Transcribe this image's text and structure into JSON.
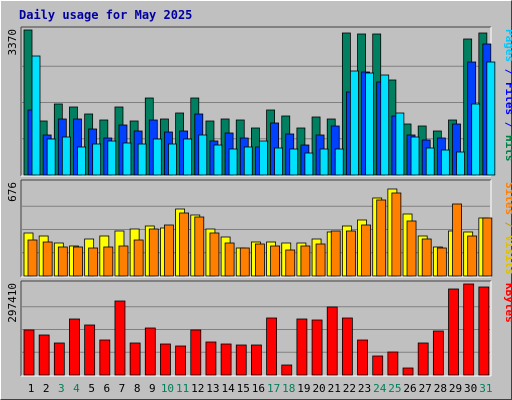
{
  "title": "Daily usage for May 2025",
  "chart_data": [
    {
      "type": "bar",
      "panel": "hits-files-pages",
      "max_label": "3370",
      "ymax": 3370,
      "legend": [
        {
          "text": "Pages",
          "color": "#00c8ff"
        },
        {
          "text": " / ",
          "color": "#0000ff"
        },
        {
          "text": "Files",
          "color": "#0000ff"
        },
        {
          "text": " / ",
          "color": "#0000ff"
        },
        {
          "text": "Hits",
          "color": "#008040"
        }
      ],
      "series": [
        {
          "name": "Hits",
          "color": "#008060",
          "values": [
            3370,
            1250,
            1650,
            1590,
            1420,
            1270,
            1570,
            1260,
            1790,
            1290,
            1450,
            1790,
            1250,
            1290,
            1270,
            1090,
            1500,
            1380,
            1090,
            1350,
            1300,
            3300,
            3270,
            3270,
            2200,
            1190,
            1140,
            1030,
            1270,
            3150,
            3290
          ]
        },
        {
          "name": "Files",
          "color": "#0040ff",
          "values": [
            1520,
            920,
            1300,
            1290,
            1080,
            860,
            1160,
            1030,
            1280,
            1000,
            1030,
            1410,
            780,
            980,
            860,
            650,
            1210,
            960,
            700,
            920,
            1130,
            1940,
            2400,
            2150,
            1360,
            930,
            810,
            850,
            1180,
            2620,
            3040
          ]
        },
        {
          "name": "Pages",
          "color": "#00e0ff",
          "values": [
            2770,
            830,
            880,
            660,
            710,
            800,
            740,
            730,
            840,
            730,
            830,
            920,
            700,
            600,
            650,
            780,
            630,
            600,
            500,
            600,
            610,
            2420,
            2360,
            2330,
            1430,
            890,
            630,
            590,
            530,
            1650,
            2630
          ]
        }
      ]
    },
    {
      "type": "bar",
      "panel": "visits-sites",
      "max_label": "676",
      "ymax": 676,
      "legend": [
        {
          "text": "Sites",
          "color": "#ff8000"
        },
        {
          "text": " / ",
          "color": "#c0a000"
        },
        {
          "text": "Visits",
          "color": "#e0c000"
        }
      ],
      "series": [
        {
          "name": "Visits",
          "color": "#ffff00",
          "values": [
            310,
            290,
            240,
            220,
            270,
            290,
            330,
            340,
            360,
            350,
            490,
            440,
            340,
            280,
            200,
            250,
            250,
            240,
            240,
            270,
            320,
            360,
            410,
            570,
            630,
            450,
            290,
            210,
            330,
            320,
            420
          ]
        },
        {
          "name": "Sites",
          "color": "#ff8000",
          "values": [
            260,
            250,
            210,
            210,
            200,
            210,
            220,
            260,
            340,
            370,
            460,
            430,
            310,
            240,
            200,
            230,
            220,
            190,
            220,
            230,
            330,
            330,
            370,
            550,
            600,
            400,
            270,
            200,
            520,
            290,
            420
          ]
        }
      ]
    },
    {
      "type": "bar",
      "panel": "kbytes",
      "max_label": "297410",
      "ymax": 297410,
      "legend": [
        {
          "text": "KBytes",
          "color": "#ff0000"
        }
      ],
      "series": [
        {
          "name": "KBytes",
          "color": "#ff0000",
          "values": [
            148000,
            132000,
            104000,
            184000,
            163000,
            116000,
            241000,
            103000,
            155000,
            102000,
            95000,
            147000,
            107000,
            101000,
            99000,
            97000,
            187000,
            32000,
            182000,
            180000,
            221000,
            186000,
            114000,
            62000,
            76000,
            22000,
            105000,
            144000,
            281000,
            297410,
            288000
          ]
        }
      ]
    }
  ],
  "days": [
    "1",
    "2",
    "3",
    "4",
    "5",
    "6",
    "7",
    "8",
    "9",
    "10",
    "11",
    "12",
    "13",
    "14",
    "15",
    "16",
    "17",
    "18",
    "19",
    "20",
    "21",
    "22",
    "23",
    "24",
    "25",
    "26",
    "27",
    "28",
    "29",
    "30",
    "31"
  ],
  "weekend_days": [
    3,
    4,
    10,
    11,
    17,
    18,
    24,
    25,
    31
  ],
  "colors": {
    "weekday_label": "#000000",
    "weekend_label": "#00805a",
    "grid": "#808080",
    "panel_bg": "#c0c0c0"
  }
}
